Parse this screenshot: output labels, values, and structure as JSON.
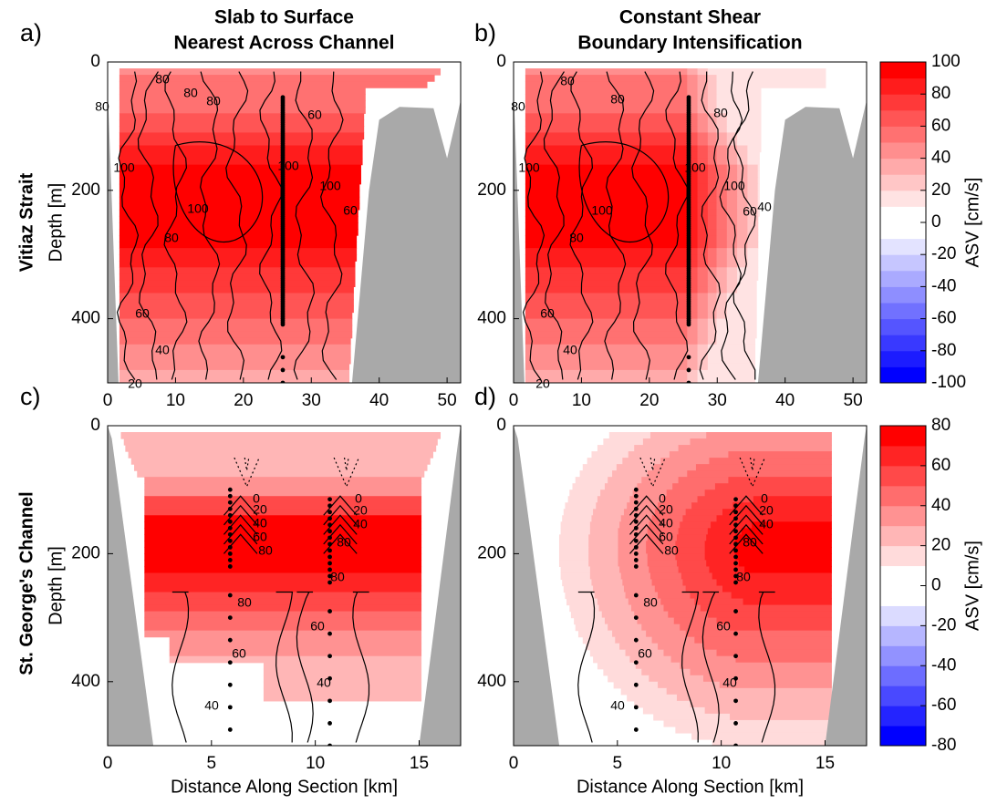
{
  "row_labels": [
    "Vitiaz Strait",
    "St. George's Channel"
  ],
  "chart_data": [
    {
      "type": "contour",
      "panel_label": "a)",
      "title": [
        "Slab to Surface",
        "Nearest Across Channel"
      ],
      "ylabel": "Depth [m]",
      "xlim": [
        0,
        52
      ],
      "ylim": [
        0,
        500
      ],
      "xticks": [
        0,
        10,
        20,
        30,
        40,
        50
      ],
      "yticks": [
        0,
        200,
        400
      ],
      "contour_labels": [
        "80",
        "80",
        "80",
        "80",
        "60",
        "100",
        "100",
        "100",
        "100",
        "60",
        "80",
        "60",
        "40",
        "20"
      ]
    },
    {
      "type": "contour",
      "panel_label": "b)",
      "title": [
        "Constant Shear",
        "Boundary Intensification"
      ],
      "xlim": [
        0,
        52
      ],
      "ylim": [
        0,
        500
      ],
      "xticks": [
        0,
        10,
        20,
        30,
        40,
        50
      ],
      "yticks": [
        0,
        200,
        400
      ],
      "contour_labels": [
        "80",
        "80",
        "80",
        "80",
        "100",
        "100",
        "100",
        "100",
        "80",
        "60",
        "40",
        "60",
        "40",
        "20"
      ]
    },
    {
      "type": "colorbar",
      "label": "ASV [cm/s]",
      "clim": [
        -100,
        100
      ],
      "ticks": [
        -100,
        -80,
        -60,
        -40,
        -20,
        0,
        20,
        40,
        60,
        80,
        100
      ]
    },
    {
      "type": "contour",
      "panel_label": "c)",
      "ylabel": "Depth [m]",
      "xlabel": "Distance Along Section [km]",
      "xlim": [
        0,
        17
      ],
      "ylim": [
        0,
        500
      ],
      "xticks": [
        0,
        5,
        10,
        15
      ],
      "yticks": [
        0,
        200,
        400
      ],
      "contour_labels": [
        "0",
        "20",
        "40",
        "60",
        "80",
        "0",
        "20",
        "40",
        "80",
        "80",
        "80",
        "60",
        "60",
        "40",
        "40"
      ]
    },
    {
      "type": "contour",
      "panel_label": "d)",
      "xlabel": "Distance Along Section [km]",
      "xlim": [
        0,
        17
      ],
      "ylim": [
        0,
        500
      ],
      "xticks": [
        0,
        5,
        10,
        15
      ],
      "yticks": [
        0,
        200,
        400
      ],
      "contour_labels": [
        "0",
        "20",
        "40",
        "60",
        "80",
        "0",
        "20",
        "40",
        "80",
        "80",
        "80",
        "60",
        "60",
        "40",
        "40"
      ]
    },
    {
      "type": "colorbar",
      "label": "ASV [cm/s]",
      "clim": [
        -80,
        80
      ],
      "ticks": [
        -80,
        -60,
        -40,
        -20,
        0,
        20,
        40,
        60,
        80
      ]
    }
  ]
}
